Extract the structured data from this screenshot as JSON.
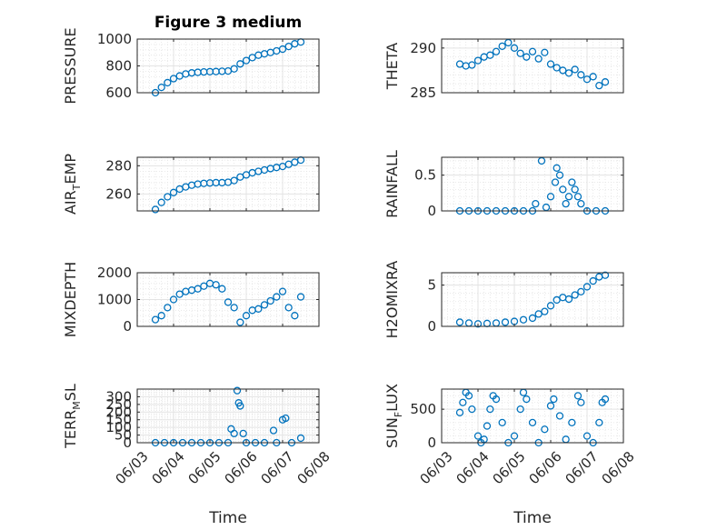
{
  "figure": {
    "title": "Figure 3 medium"
  },
  "chart_data": [
    {
      "type": "scatter",
      "ylabel": "PRESSURE",
      "ylim": [
        600,
        1000
      ],
      "yticks": [
        "600",
        "800",
        "1000"
      ],
      "yticks_v": [
        600,
        800,
        1000
      ],
      "xlim": [
        "06/03",
        "06/08"
      ],
      "xticks": [
        "06/03",
        "06/04",
        "06/05",
        "06/06",
        "06/07",
        "06/08"
      ],
      "xlabel": "",
      "grid": true,
      "points": [
        [
          "06/03 12:00",
          600
        ],
        [
          "06/03 16:00",
          640
        ],
        [
          "06/03 20:00",
          675
        ],
        [
          "06/04 00:00",
          705
        ],
        [
          "06/04 04:00",
          725
        ],
        [
          "06/04 08:00",
          740
        ],
        [
          "06/04 12:00",
          748
        ],
        [
          "06/04 16:00",
          752
        ],
        [
          "06/04 20:00",
          755
        ],
        [
          "06/05 00:00",
          757
        ],
        [
          "06/05 04:00",
          758
        ],
        [
          "06/05 08:00",
          760
        ],
        [
          "06/05 12:00",
          762
        ],
        [
          "06/05 16:00",
          778
        ],
        [
          "06/05 20:00",
          815
        ],
        [
          "06/06 00:00",
          840
        ],
        [
          "06/06 04:00",
          862
        ],
        [
          "06/06 08:00",
          880
        ],
        [
          "06/06 12:00",
          890
        ],
        [
          "06/06 16:00",
          900
        ],
        [
          "06/06 20:00",
          912
        ],
        [
          "06/07 00:00",
          925
        ],
        [
          "06/07 04:00",
          945
        ],
        [
          "06/07 08:00",
          965
        ],
        [
          "06/07 12:00",
          978
        ]
      ]
    },
    {
      "type": "scatter",
      "ylabel": "THETA",
      "ylim": [
        285,
        291
      ],
      "yticks": [
        "285",
        "290"
      ],
      "yticks_v": [
        285,
        290
      ],
      "xlim": [
        "06/03",
        "06/08"
      ],
      "xticks": [
        "06/03",
        "06/04",
        "06/05",
        "06/06",
        "06/07",
        "06/08"
      ],
      "xlabel": "",
      "grid": true,
      "points": [
        [
          "06/03 12:00",
          288.2
        ],
        [
          "06/03 16:00",
          288.0
        ],
        [
          "06/03 20:00",
          288.1
        ],
        [
          "06/04 00:00",
          288.6
        ],
        [
          "06/04 04:00",
          289.0
        ],
        [
          "06/04 08:00",
          289.2
        ],
        [
          "06/04 12:00",
          289.6
        ],
        [
          "06/04 16:00",
          290.2
        ],
        [
          "06/04 20:00",
          290.6
        ],
        [
          "06/05 00:00",
          290.0
        ],
        [
          "06/05 04:00",
          289.4
        ],
        [
          "06/05 08:00",
          289.0
        ],
        [
          "06/05 12:00",
          289.6
        ],
        [
          "06/05 16:00",
          288.8
        ],
        [
          "06/05 20:00",
          289.5
        ],
        [
          "06/06 00:00",
          288.2
        ],
        [
          "06/06 04:00",
          287.8
        ],
        [
          "06/06 08:00",
          287.5
        ],
        [
          "06/06 12:00",
          287.2
        ],
        [
          "06/06 16:00",
          287.6
        ],
        [
          "06/06 20:00",
          287.0
        ],
        [
          "06/07 00:00",
          286.5
        ],
        [
          "06/07 04:00",
          286.8
        ],
        [
          "06/07 08:00",
          285.8
        ],
        [
          "06/07 12:00",
          286.2
        ]
      ]
    },
    {
      "type": "scatter",
      "ylabel": "AIR_TEMP",
      "ylim": [
        248,
        286
      ],
      "yticks": [
        "260",
        "280"
      ],
      "yticks_v": [
        260,
        280
      ],
      "xlim": [
        "06/03",
        "06/08"
      ],
      "xticks": [
        "06/03",
        "06/04",
        "06/05",
        "06/06",
        "06/07",
        "06/08"
      ],
      "xlabel": "",
      "grid": true,
      "points": [
        [
          "06/03 12:00",
          249
        ],
        [
          "06/03 16:00",
          254
        ],
        [
          "06/03 20:00",
          258
        ],
        [
          "06/04 00:00",
          261
        ],
        [
          "06/04 04:00",
          263.5
        ],
        [
          "06/04 08:00",
          265
        ],
        [
          "06/04 12:00",
          266.2
        ],
        [
          "06/04 16:00",
          267
        ],
        [
          "06/04 20:00",
          267.5
        ],
        [
          "06/05 00:00",
          267.8
        ],
        [
          "06/05 04:00",
          268
        ],
        [
          "06/05 08:00",
          268
        ],
        [
          "06/05 12:00",
          268.3
        ],
        [
          "06/05 16:00",
          269.5
        ],
        [
          "06/05 20:00",
          272
        ],
        [
          "06/06 00:00",
          273.5
        ],
        [
          "06/06 04:00",
          275
        ],
        [
          "06/06 08:00",
          276
        ],
        [
          "06/06 12:00",
          277
        ],
        [
          "06/06 16:00",
          278
        ],
        [
          "06/06 20:00",
          278.8
        ],
        [
          "06/07 00:00",
          279.5
        ],
        [
          "06/07 04:00",
          281
        ],
        [
          "06/07 08:00",
          282.5
        ],
        [
          "06/07 12:00",
          284
        ]
      ]
    },
    {
      "type": "scatter",
      "ylabel": "RAINFALL",
      "ylim": [
        0,
        0.75
      ],
      "yticks": [
        "0",
        "0.5"
      ],
      "yticks_v": [
        0,
        0.5
      ],
      "xlim": [
        "06/03",
        "06/08"
      ],
      "xticks": [
        "06/03",
        "06/04",
        "06/05",
        "06/06",
        "06/07",
        "06/08"
      ],
      "xlabel": "",
      "grid": true,
      "points": [
        [
          "06/03 12:00",
          0
        ],
        [
          "06/03 18:00",
          0
        ],
        [
          "06/04 00:00",
          0
        ],
        [
          "06/04 06:00",
          0
        ],
        [
          "06/04 12:00",
          0
        ],
        [
          "06/04 18:00",
          0
        ],
        [
          "06/05 00:00",
          0
        ],
        [
          "06/05 06:00",
          0
        ],
        [
          "06/05 12:00",
          0
        ],
        [
          "06/05 14:00",
          0.1
        ],
        [
          "06/05 18:00",
          0.7
        ],
        [
          "06/05 21:00",
          0.05
        ],
        [
          "06/06 00:00",
          0.2
        ],
        [
          "06/06 03:00",
          0.4
        ],
        [
          "06/06 04:00",
          0.6
        ],
        [
          "06/06 06:00",
          0.5
        ],
        [
          "06/06 08:00",
          0.3
        ],
        [
          "06/06 10:00",
          0.1
        ],
        [
          "06/06 12:00",
          0.2
        ],
        [
          "06/06 14:00",
          0.4
        ],
        [
          "06/06 16:00",
          0.3
        ],
        [
          "06/06 18:00",
          0.2
        ],
        [
          "06/06 20:00",
          0.1
        ],
        [
          "06/07 00:00",
          0
        ],
        [
          "06/07 06:00",
          0
        ],
        [
          "06/07 12:00",
          0
        ]
      ]
    },
    {
      "type": "scatter",
      "ylabel": "MIXDEPTH",
      "ylim": [
        0,
        2000
      ],
      "yticks": [
        "0",
        "1000",
        "2000"
      ],
      "yticks_v": [
        0,
        1000,
        2000
      ],
      "xlim": [
        "06/03",
        "06/08"
      ],
      "xticks": [
        "06/03",
        "06/04",
        "06/05",
        "06/06",
        "06/07",
        "06/08"
      ],
      "xlabel": "",
      "grid": true,
      "points": [
        [
          "06/03 12:00",
          250
        ],
        [
          "06/03 16:00",
          400
        ],
        [
          "06/03 20:00",
          700
        ],
        [
          "06/04 00:00",
          1000
        ],
        [
          "06/04 04:00",
          1200
        ],
        [
          "06/04 08:00",
          1300
        ],
        [
          "06/04 12:00",
          1350
        ],
        [
          "06/04 16:00",
          1400
        ],
        [
          "06/04 20:00",
          1500
        ],
        [
          "06/05 00:00",
          1600
        ],
        [
          "06/05 04:00",
          1550
        ],
        [
          "06/05 08:00",
          1400
        ],
        [
          "06/05 12:00",
          900
        ],
        [
          "06/05 16:00",
          700
        ],
        [
          "06/05 20:00",
          150
        ],
        [
          "06/06 00:00",
          400
        ],
        [
          "06/06 04:00",
          600
        ],
        [
          "06/06 08:00",
          650
        ],
        [
          "06/06 12:00",
          800
        ],
        [
          "06/06 16:00",
          950
        ],
        [
          "06/06 20:00",
          1100
        ],
        [
          "06/07 00:00",
          1300
        ],
        [
          "06/07 04:00",
          700
        ],
        [
          "06/07 08:00",
          400
        ],
        [
          "06/07 12:00",
          1100
        ]
      ]
    },
    {
      "type": "scatter",
      "ylabel": "H2OMIXRA",
      "ylim": [
        0,
        6.5
      ],
      "yticks": [
        "0",
        "5"
      ],
      "yticks_v": [
        0,
        5
      ],
      "xlim": [
        "06/03",
        "06/08"
      ],
      "xticks": [
        "06/03",
        "06/04",
        "06/05",
        "06/06",
        "06/07",
        "06/08"
      ],
      "xlabel": "",
      "grid": true,
      "points": [
        [
          "06/03 12:00",
          0.5
        ],
        [
          "06/03 18:00",
          0.4
        ],
        [
          "06/04 00:00",
          0.3
        ],
        [
          "06/04 06:00",
          0.35
        ],
        [
          "06/04 12:00",
          0.4
        ],
        [
          "06/04 18:00",
          0.5
        ],
        [
          "06/05 00:00",
          0.6
        ],
        [
          "06/05 06:00",
          0.8
        ],
        [
          "06/05 12:00",
          1.0
        ],
        [
          "06/05 16:00",
          1.5
        ],
        [
          "06/05 20:00",
          1.8
        ],
        [
          "06/06 00:00",
          2.5
        ],
        [
          "06/06 04:00",
          3.2
        ],
        [
          "06/06 08:00",
          3.5
        ],
        [
          "06/06 12:00",
          3.3
        ],
        [
          "06/06 16:00",
          3.8
        ],
        [
          "06/06 20:00",
          4.2
        ],
        [
          "06/07 00:00",
          4.8
        ],
        [
          "06/07 04:00",
          5.5
        ],
        [
          "06/07 08:00",
          6.0
        ],
        [
          "06/07 12:00",
          6.2
        ]
      ]
    },
    {
      "type": "scatter",
      "ylabel": "TERR_MSL",
      "ylim": [
        0,
        350
      ],
      "yticks": [
        "0",
        "50",
        "100",
        "150",
        "200",
        "250",
        "300"
      ],
      "yticks_v": [
        0,
        50,
        100,
        150,
        200,
        250,
        300
      ],
      "xlim": [
        "06/03",
        "06/08"
      ],
      "xticks": [
        "06/03",
        "06/04",
        "06/05",
        "06/06",
        "06/07",
        "06/08"
      ],
      "xlabel": "Time",
      "grid": true,
      "points": [
        [
          "06/03 12:00",
          0
        ],
        [
          "06/03 18:00",
          0
        ],
        [
          "06/04 00:00",
          0
        ],
        [
          "06/04 06:00",
          0
        ],
        [
          "06/04 12:00",
          0
        ],
        [
          "06/04 18:00",
          0
        ],
        [
          "06/05 00:00",
          0
        ],
        [
          "06/05 06:00",
          0
        ],
        [
          "06/05 12:00",
          0
        ],
        [
          "06/05 14:00",
          90
        ],
        [
          "06/05 16:00",
          60
        ],
        [
          "06/05 18:00",
          340
        ],
        [
          "06/05 19:00",
          260
        ],
        [
          "06/05 20:00",
          240
        ],
        [
          "06/05 22:00",
          60
        ],
        [
          "06/06 00:00",
          0
        ],
        [
          "06/06 06:00",
          0
        ],
        [
          "06/06 12:00",
          0
        ],
        [
          "06/06 18:00",
          80
        ],
        [
          "06/06 20:00",
          0
        ],
        [
          "06/07 00:00",
          150
        ],
        [
          "06/07 02:00",
          160
        ],
        [
          "06/07 06:00",
          0
        ],
        [
          "06/07 12:00",
          30
        ]
      ]
    },
    {
      "type": "scatter",
      "ylabel": "SUN_FLUX",
      "ylim": [
        0,
        800
      ],
      "yticks": [
        "0",
        "500"
      ],
      "yticks_v": [
        0,
        500
      ],
      "xlim": [
        "06/03",
        "06/08"
      ],
      "xticks": [
        "06/03",
        "06/04",
        "06/05",
        "06/06",
        "06/07",
        "06/08"
      ],
      "xlabel": "Time",
      "grid": true,
      "points": [
        [
          "06/03 12:00",
          450
        ],
        [
          "06/03 14:00",
          600
        ],
        [
          "06/03 16:00",
          750
        ],
        [
          "06/03 18:00",
          700
        ],
        [
          "06/03 20:00",
          500
        ],
        [
          "06/04 00:00",
          100
        ],
        [
          "06/04 02:00",
          0
        ],
        [
          "06/04 04:00",
          50
        ],
        [
          "06/04 06:00",
          250
        ],
        [
          "06/04 08:00",
          500
        ],
        [
          "06/04 10:00",
          700
        ],
        [
          "06/04 12:00",
          650
        ],
        [
          "06/04 16:00",
          300
        ],
        [
          "06/04 20:00",
          0
        ],
        [
          "06/05 00:00",
          100
        ],
        [
          "06/05 04:00",
          500
        ],
        [
          "06/05 06:00",
          750
        ],
        [
          "06/05 08:00",
          650
        ],
        [
          "06/05 12:00",
          300
        ],
        [
          "06/05 16:00",
          0
        ],
        [
          "06/05 20:00",
          200
        ],
        [
          "06/06 00:00",
          550
        ],
        [
          "06/06 02:00",
          650
        ],
        [
          "06/06 06:00",
          400
        ],
        [
          "06/06 10:00",
          50
        ],
        [
          "06/06 14:00",
          300
        ],
        [
          "06/06 18:00",
          700
        ],
        [
          "06/06 20:00",
          600
        ],
        [
          "06/07 00:00",
          100
        ],
        [
          "06/07 04:00",
          0
        ],
        [
          "06/07 08:00",
          300
        ],
        [
          "06/07 10:00",
          600
        ],
        [
          "06/07 12:00",
          650
        ]
      ]
    }
  ],
  "style": {
    "marker_color": "#0072bd",
    "grid_color": "#e3e3e3",
    "axis_color": "#262626"
  }
}
